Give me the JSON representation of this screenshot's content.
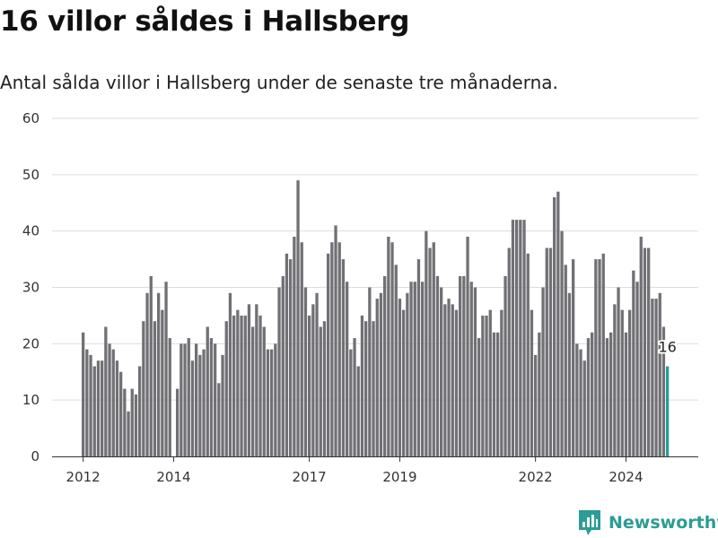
{
  "title": "16 villor såldes i Hallsberg",
  "subtitle": "Antal sålda villor i Hallsberg under de senaste tre månaderna.",
  "brand": {
    "name": "Newsworthy",
    "icon": "newsworthy-logo-icon"
  },
  "colors": {
    "bar": "#717075",
    "highlight": "#2a9d96",
    "grid": "#dddddd",
    "axis": "#333333"
  },
  "chart_data": {
    "type": "bar",
    "title": "16 villor såldes i Hallsberg",
    "subtitle": "Antal sålda villor i Hallsberg under de senaste tre månaderna.",
    "xlabel": "",
    "ylabel": "",
    "ylim": [
      0,
      60
    ],
    "yticks": [
      0,
      10,
      20,
      30,
      40,
      50,
      60
    ],
    "grid": true,
    "legend": "none",
    "x_start": "2012-01",
    "x_end": "2024-12",
    "xticks": [
      {
        "label": "2012",
        "x": "2012-01"
      },
      {
        "label": "2014",
        "x": "2014-01"
      },
      {
        "label": "2017",
        "x": "2017-01"
      },
      {
        "label": "2019",
        "x": "2019-01"
      },
      {
        "label": "2022",
        "x": "2022-01"
      },
      {
        "label": "2024",
        "x": "2024-01"
      }
    ],
    "highlight_index": 155,
    "highlight_label": "16",
    "series": [
      {
        "values": [
          22,
          19,
          18,
          16,
          17,
          17,
          23,
          20,
          19,
          17,
          15,
          12,
          8,
          12,
          11,
          16,
          24,
          29,
          32,
          24,
          29,
          26,
          31,
          21,
          0,
          12,
          20,
          20,
          21,
          17,
          20,
          18,
          19,
          23,
          21,
          20,
          13,
          18,
          24,
          29,
          25,
          26,
          25,
          25,
          27,
          23,
          27,
          25,
          23,
          19,
          19,
          20,
          30,
          32,
          36,
          35,
          39,
          49,
          38,
          30,
          25,
          27,
          29,
          23,
          24,
          36,
          38,
          41,
          38,
          35,
          31,
          19,
          21,
          16,
          25,
          24,
          30,
          24,
          28,
          29,
          32,
          39,
          38,
          34,
          28,
          26,
          29,
          31,
          31,
          35,
          31,
          40,
          37,
          38,
          32,
          30,
          27,
          28,
          27,
          26,
          32,
          32,
          39,
          31,
          30,
          21,
          25,
          25,
          26,
          22,
          22,
          26,
          32,
          37,
          42,
          42,
          42,
          42,
          36,
          26,
          18,
          22,
          30,
          37,
          37,
          46,
          47,
          40,
          34,
          29,
          35,
          20,
          19,
          17,
          21,
          22,
          35,
          35,
          36,
          21,
          22,
          27,
          30,
          26,
          22,
          26,
          33,
          31,
          39,
          37,
          37,
          28,
          28,
          29,
          23,
          16
        ]
      }
    ]
  }
}
